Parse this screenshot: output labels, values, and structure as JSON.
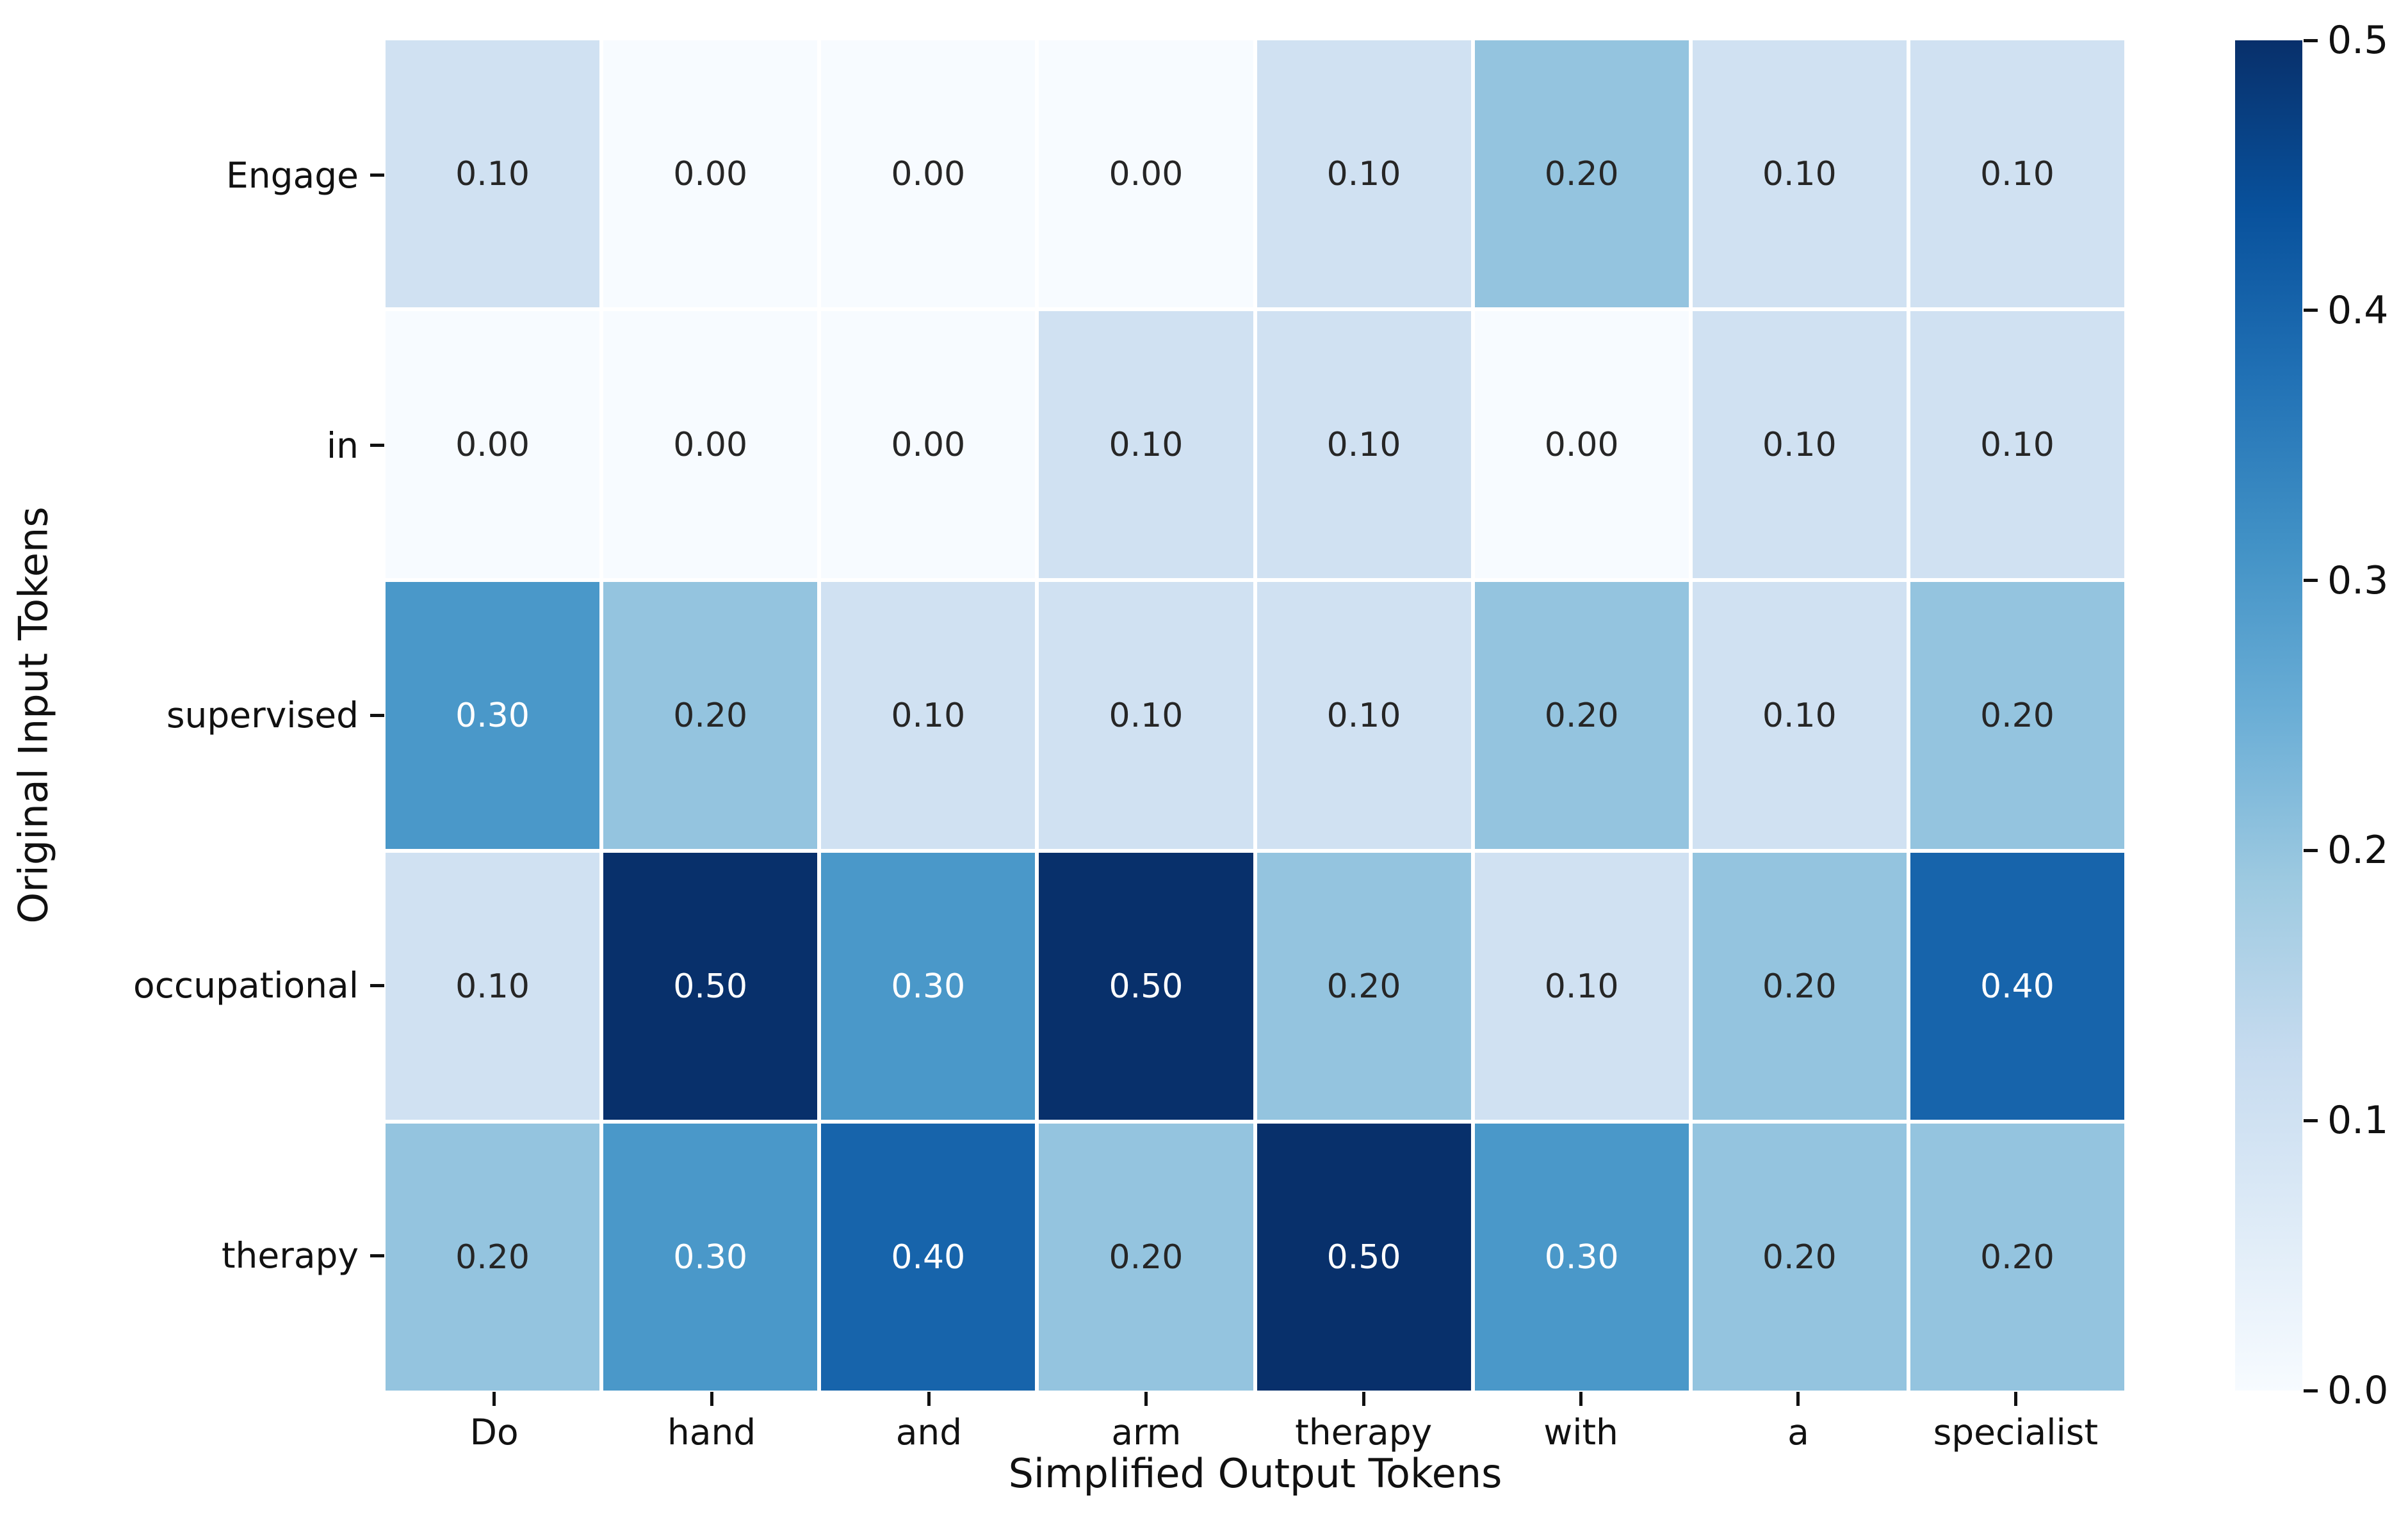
{
  "chart_data": {
    "type": "heatmap",
    "title": "",
    "xlabel": "Simplified Output Tokens",
    "ylabel": "Original Input Tokens",
    "x_categories": [
      "Do",
      "hand",
      "and",
      "arm",
      "therapy",
      "with",
      "a",
      "specialist"
    ],
    "y_categories": [
      "Engage",
      "in",
      "supervised",
      "occupational",
      "therapy"
    ],
    "values": [
      [
        0.1,
        0.0,
        0.0,
        0.0,
        0.1,
        0.2,
        0.1,
        0.1
      ],
      [
        0.0,
        0.0,
        0.0,
        0.1,
        0.1,
        0.0,
        0.1,
        0.1
      ],
      [
        0.3,
        0.2,
        0.1,
        0.1,
        0.1,
        0.2,
        0.1,
        0.2
      ],
      [
        0.1,
        0.5,
        0.3,
        0.5,
        0.2,
        0.1,
        0.2,
        0.4
      ],
      [
        0.2,
        0.3,
        0.4,
        0.2,
        0.5,
        0.3,
        0.2,
        0.2
      ]
    ],
    "annotation_format": "two_decimals",
    "vmin": 0.0,
    "vmax": 0.5,
    "colormap": "Blues",
    "grid": false,
    "legend_position": "right-colorbar",
    "colorbar": {
      "tick_values": [
        0.0,
        0.1,
        0.2,
        0.3,
        0.4,
        0.5
      ],
      "tick_labels": [
        "0.0",
        "0.1",
        "0.2",
        "0.3",
        "0.4",
        "0.5"
      ]
    },
    "colors": {
      "cmap_anchors": [
        "#f7fbff",
        "#deebf7",
        "#c6dbef",
        "#9ecae1",
        "#6baed6",
        "#4292c6",
        "#2171b5",
        "#08519c",
        "#08306b"
      ],
      "annotation_dark": "#262626",
      "annotation_light": "#ffffff",
      "tick_color": "#111111",
      "background": "#ffffff",
      "white_text_threshold": 0.3
    }
  }
}
